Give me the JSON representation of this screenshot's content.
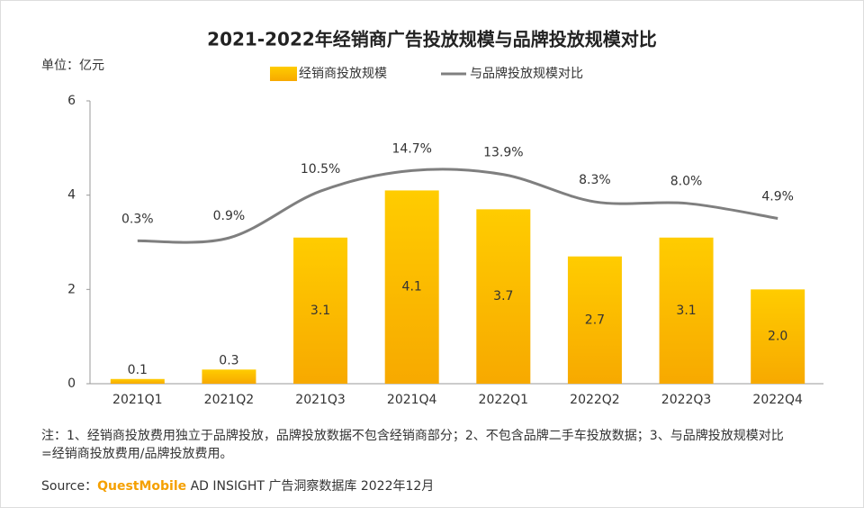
{
  "chart_data": {
    "type": "bar-line",
    "title": "2021-2022年经销商广告投放规模与品牌投放规模对比",
    "unit_label": "单位：亿元",
    "categories": [
      "2021Q1",
      "2021Q2",
      "2021Q3",
      "2021Q4",
      "2022Q1",
      "2022Q2",
      "2022Q3",
      "2022Q4"
    ],
    "series": [
      {
        "name": "经销商投放规模",
        "type": "bar",
        "color": "#ffc000",
        "values": [
          0.1,
          0.3,
          3.1,
          4.1,
          3.7,
          2.7,
          3.1,
          2.0
        ],
        "value_labels": [
          "0.1",
          "0.3",
          "3.1",
          "4.1",
          "3.7",
          "2.7",
          "3.1",
          "2.0"
        ]
      },
      {
        "name": "与品牌投放规模对比",
        "type": "line",
        "axis": "y2",
        "color": "#7f7f7f",
        "values": [
          0.3,
          0.9,
          10.5,
          14.7,
          13.9,
          8.3,
          8.0,
          4.9
        ],
        "value_labels": [
          "0.3%",
          "0.9%",
          "10.5%",
          "14.7%",
          "13.9%",
          "8.3%",
          "8.0%",
          "4.9%"
        ]
      }
    ],
    "ylim": [
      0,
      6
    ],
    "yticks": [
      0,
      2,
      4,
      6
    ],
    "y2lim": [
      -29,
      29
    ],
    "note": "注：1、经销商投放费用独立于品牌投放，品牌投放数据不包含经销商部分；2、不包含品牌二手车投放数据；3、与品牌投放规模对比=经销商投放费用/品牌投放费用。",
    "source_prefix": "Source：",
    "source_brand": "QuestMobile",
    "source_rest": "AD INSIGHT 广告洞察数据库 2022年12月"
  }
}
